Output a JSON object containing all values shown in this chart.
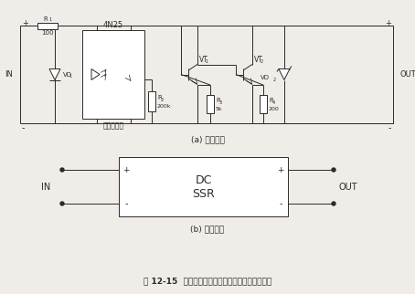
{
  "bg_color": "#f0ede8",
  "line_color": "#2a2a2a",
  "title_text": "图 12-15  直流式固态继电器的内部电路与图形符号",
  "sub_a": "(a) 内部电路",
  "sub_b": "(b) 图形符号",
  "label_4N25": "4N25",
  "label_optocoupler": "光电耦合器",
  "label_R1": "R",
  "label_R1_sub": "1",
  "label_R1_val": "100",
  "label_R2": "R",
  "label_R2_sub": "2",
  "label_R2_val": "200k",
  "label_R3": "R",
  "label_R3_sub": "3",
  "label_R3_val": "5k",
  "label_R4": "R",
  "label_R4_sub": "4",
  "label_R4_val": "200",
  "label_VD1": "VD",
  "label_VD1_sub": "1",
  "label_VD2": "VD",
  "label_VD2_sub": "2",
  "label_VT1": "VT",
  "label_VT1_sub": "1",
  "label_VT2": "VT",
  "label_VT2_sub": "2",
  "label_IN": "IN",
  "label_OUT": "OUT",
  "label_DC": "DC",
  "label_SSR": "SSR"
}
